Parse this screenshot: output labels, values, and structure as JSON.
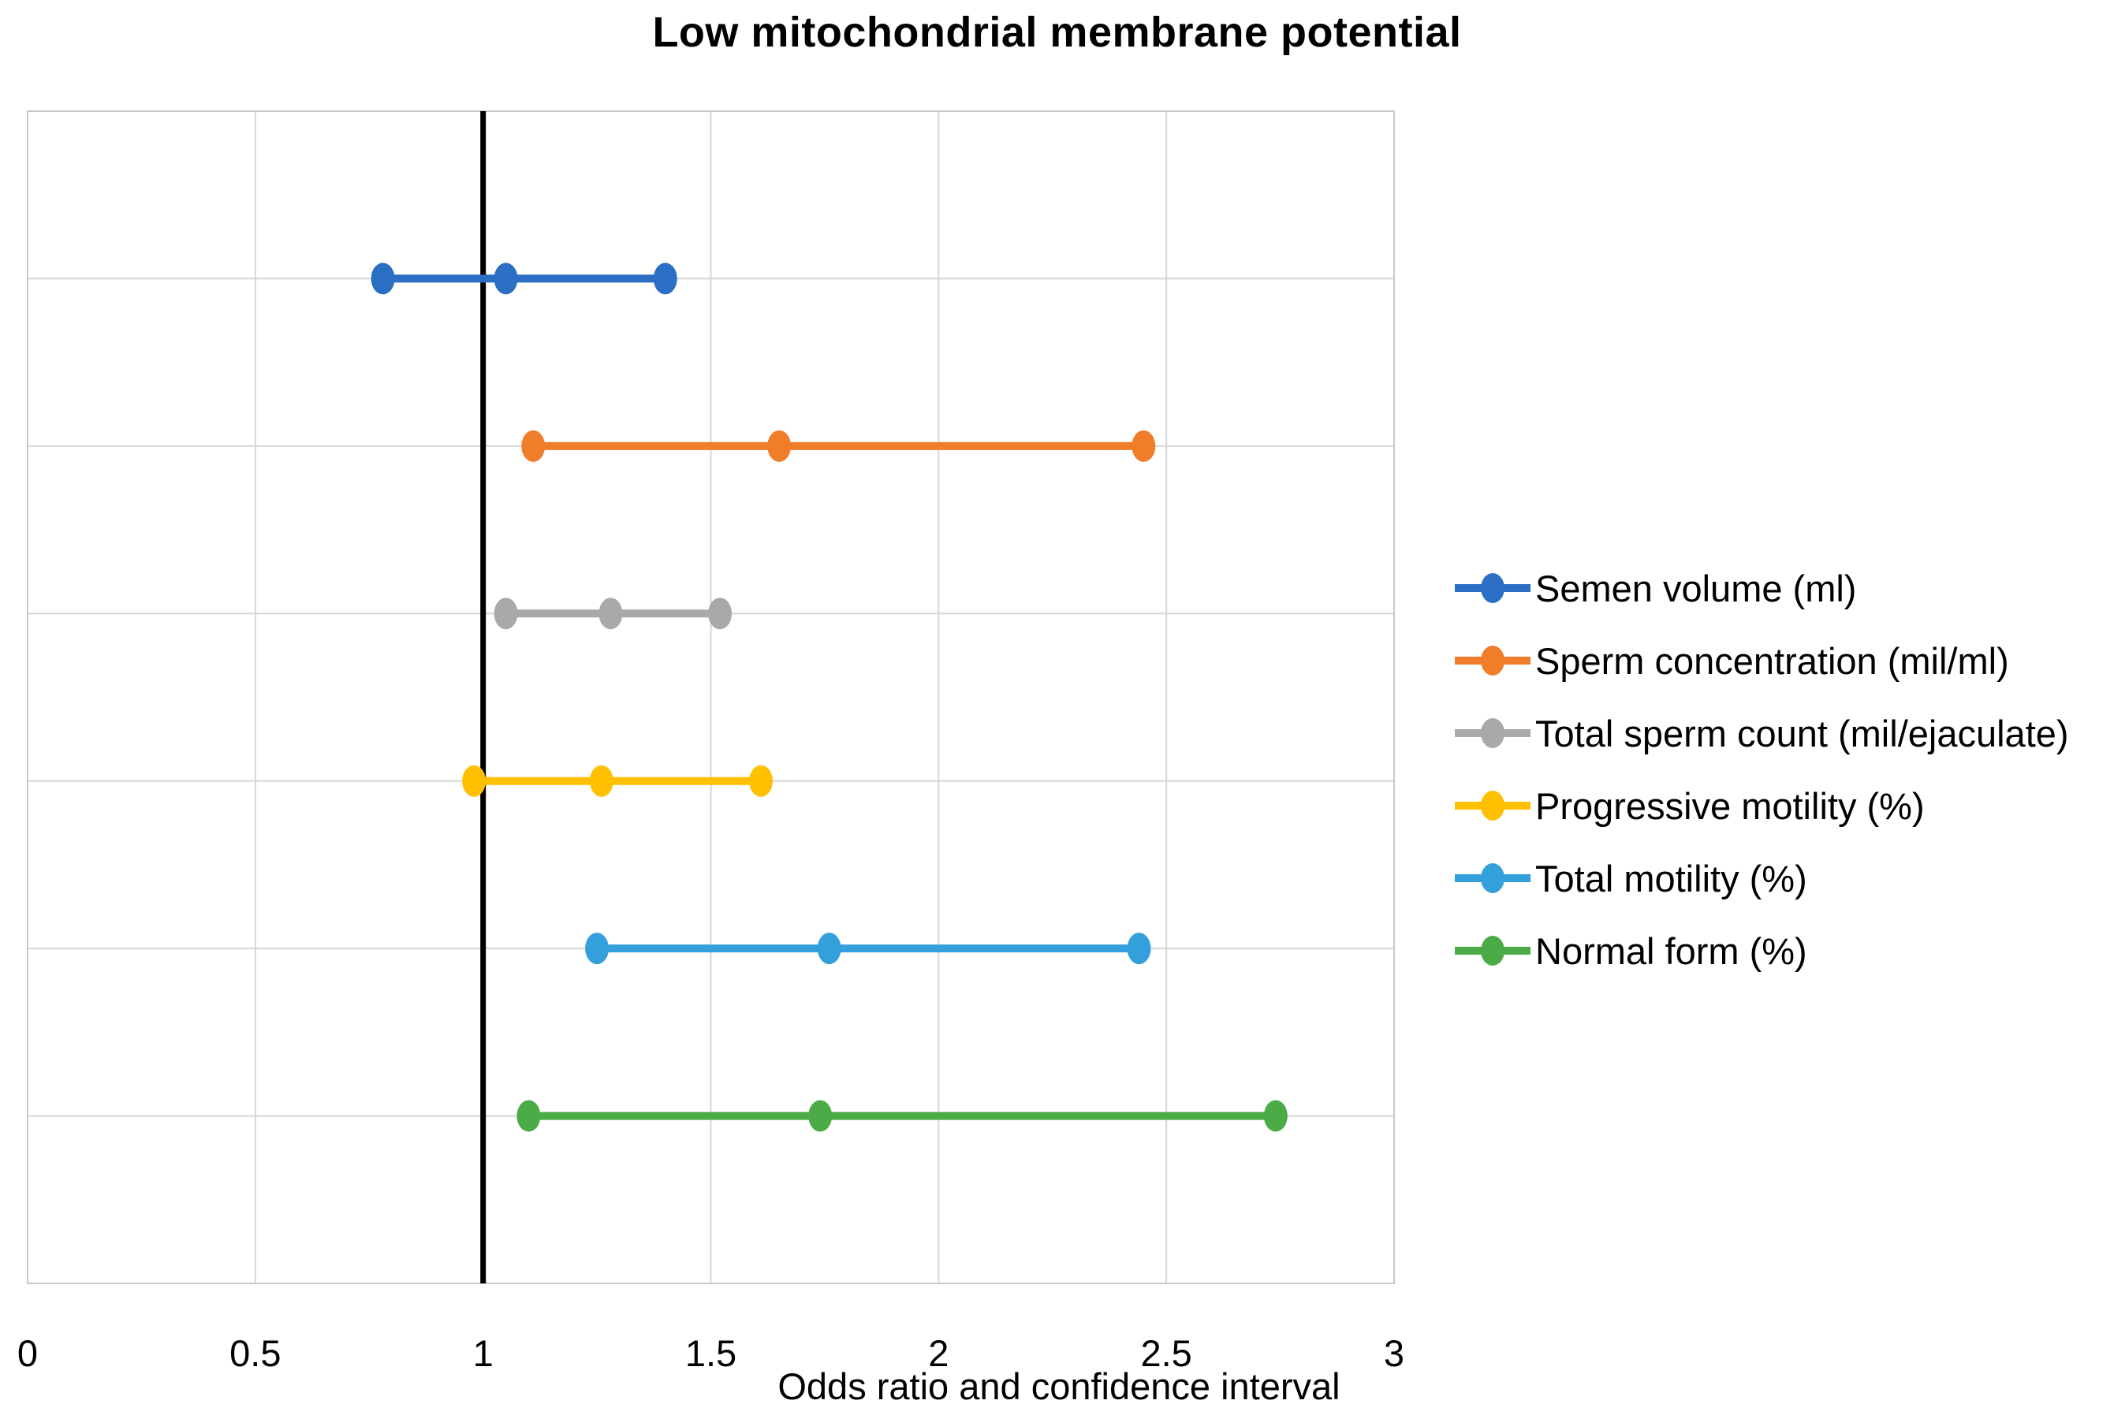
{
  "chart_data": {
    "type": "scatter",
    "variant": "forest-plot-odds-ratios",
    "title": "Low mitochondrial membrane potential",
    "xlabel": "Odds ratio and confidence interval",
    "xlim": [
      0,
      3
    ],
    "x_tick_values": [
      0,
      0.5,
      1,
      1.5,
      2,
      2.5,
      3
    ],
    "x_tick_labels": [
      "0",
      "0.5",
      "1",
      "1.5",
      "2",
      "2.5",
      "3"
    ],
    "reference_line_x": 1,
    "grid": true,
    "legend_position": "right",
    "series": [
      {
        "name": "Semen volume (ml)",
        "color": "#2B6FC4",
        "odds_ratio": 1.05,
        "ci_low": 0.78,
        "ci_high": 1.4
      },
      {
        "name": "Sperm concentration (mil/ml)",
        "color": "#F07D29",
        "odds_ratio": 1.65,
        "ci_low": 1.11,
        "ci_high": 2.45
      },
      {
        "name": "Total sperm count (mil/ejaculate)",
        "color": "#A9A9A9",
        "odds_ratio": 1.28,
        "ci_low": 1.05,
        "ci_high": 1.52
      },
      {
        "name": "Progressive motility  (%)",
        "color": "#FFC001",
        "odds_ratio": 1.26,
        "ci_low": 0.98,
        "ci_high": 1.61
      },
      {
        "name": "Total motility (%)",
        "color": "#33A0DB",
        "odds_ratio": 1.76,
        "ci_low": 1.25,
        "ci_high": 2.44
      },
      {
        "name": "Normal form (%)",
        "color": "#4BAB47",
        "odds_ratio": 1.74,
        "ci_low": 1.1,
        "ci_high": 2.74
      }
    ],
    "colors": {
      "reference_line": "#000000",
      "gridline": "#D6D6D6",
      "plot_border": "#C9C9C9",
      "text": "#000000",
      "background": "#FFFFFF"
    }
  }
}
